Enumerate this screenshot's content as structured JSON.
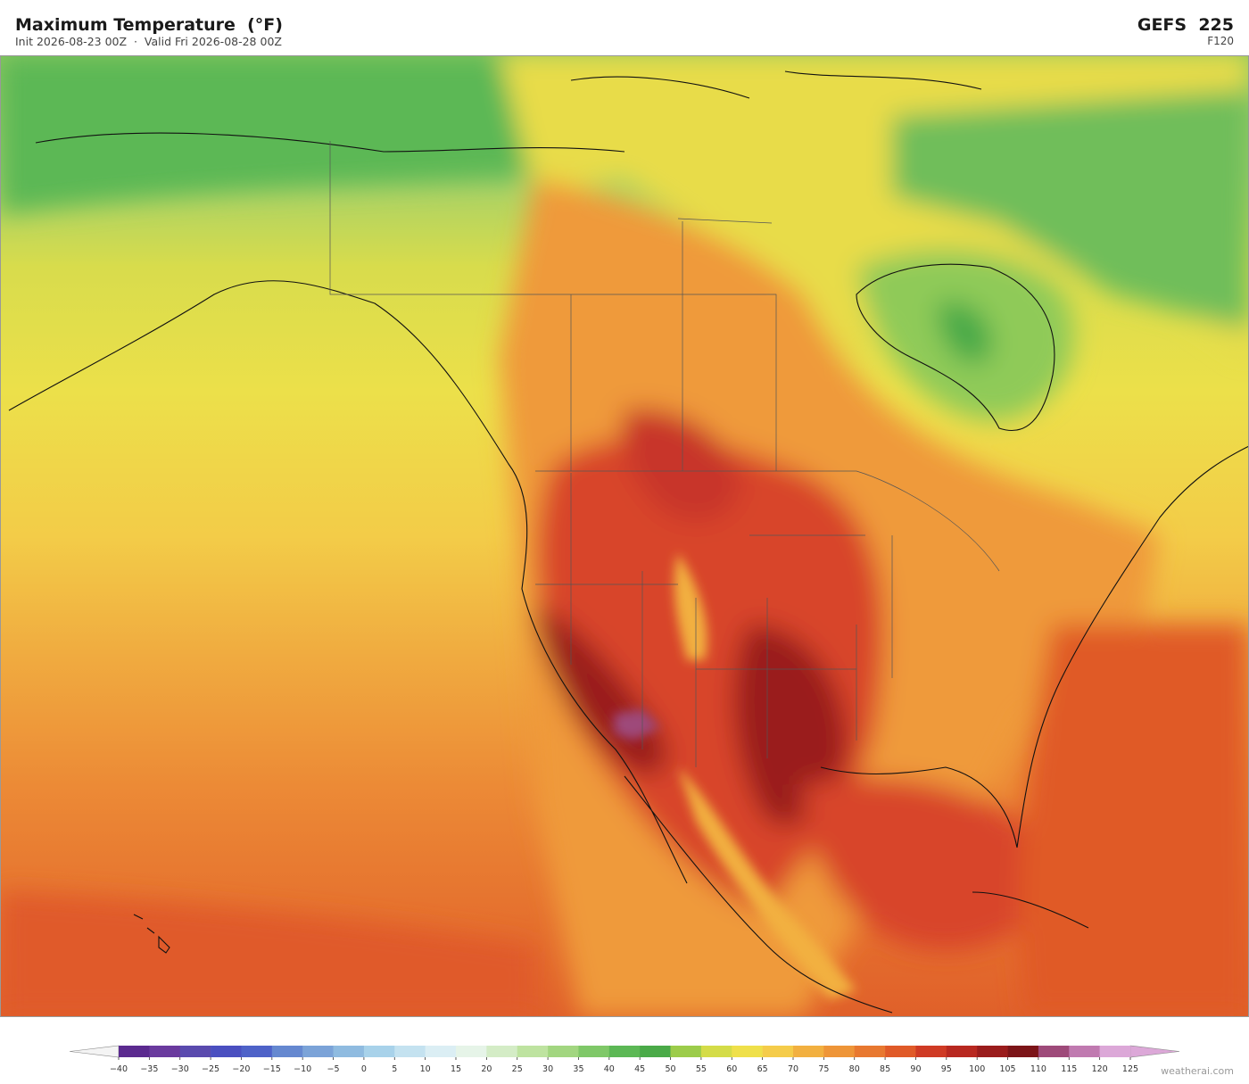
{
  "header": {
    "title": "Maximum Temperature  (°F)",
    "subtitle": "Init 2026-08-23 00Z  ·  Valid Fri 2026-08-28 00Z",
    "model": "GEFS  225",
    "forecast_hour": "F120"
  },
  "colorbar": {
    "ticks": [
      {
        "value": -40,
        "label": "−40"
      },
      {
        "value": -35,
        "label": "−35"
      },
      {
        "value": -30,
        "label": "−30"
      },
      {
        "value": -25,
        "label": "−25"
      },
      {
        "value": -20,
        "label": "−20"
      },
      {
        "value": -15,
        "label": "−15"
      },
      {
        "value": -10,
        "label": "−10"
      },
      {
        "value": -5,
        "label": "−5"
      },
      0,
      5,
      10,
      15,
      20,
      25,
      30,
      35,
      40,
      45,
      50,
      55,
      60,
      65,
      70,
      75,
      80,
      85,
      90,
      95,
      100,
      105,
      110,
      115,
      120,
      125
    ],
    "colors": [
      "#5b2a8f",
      "#6a3a9e",
      "#5a4aae",
      "#4a4fc0",
      "#4e62c8",
      "#6588d0",
      "#7ba3d8",
      "#8fbbe0",
      "#a8d2ea",
      "#c4e2f0",
      "#dbeef4",
      "#e6f4e8",
      "#d4ecc6",
      "#bee3a0",
      "#a2d680",
      "#7fc868",
      "#5cb855",
      "#4aaa48",
      "#9ccc4a",
      "#d4dc48",
      "#efe04a",
      "#f5cc4a",
      "#f2b040",
      "#ee9538",
      "#e87830",
      "#e05a28",
      "#cf3a24",
      "#b82820",
      "#9a1c1c",
      "#7c1418",
      "#9e4a7a",
      "#c07ab0",
      "#dca8d8"
    ],
    "under_color": "#f4f4f4",
    "over_color": "#dca8d8"
  },
  "footer": {
    "watermark": "weatherai.com"
  }
}
